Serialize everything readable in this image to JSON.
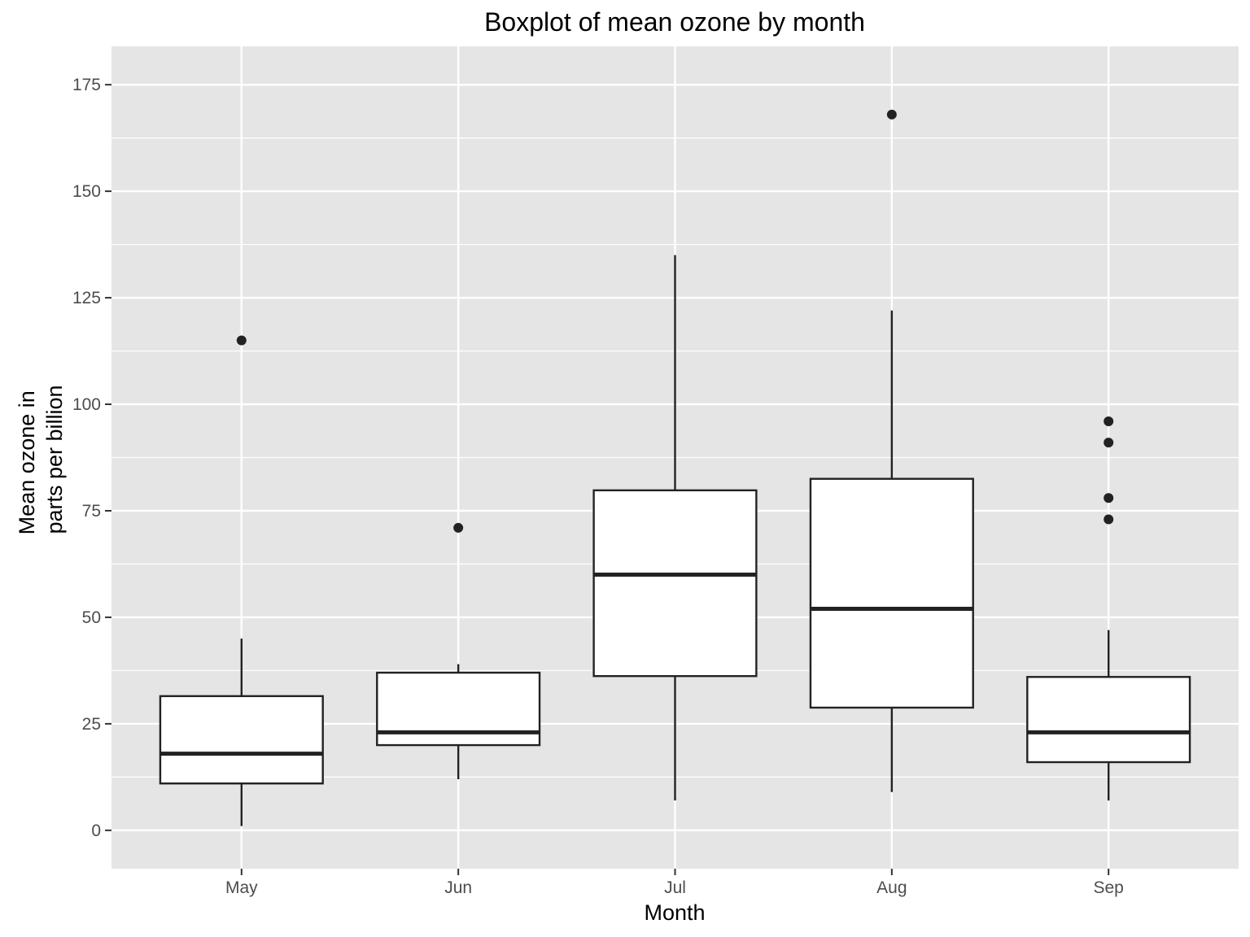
{
  "chart_data": {
    "type": "boxplot",
    "title": "Boxplot of mean ozone by month",
    "xlabel": "Month",
    "ylabel": [
      "Mean ozone in",
      "parts per billion"
    ],
    "categories": [
      "May",
      "Jun",
      "Jul",
      "Aug",
      "Sep"
    ],
    "ylim": [
      -9,
      184
    ],
    "yticks": [
      0,
      25,
      50,
      75,
      100,
      125,
      150,
      175
    ],
    "grid": true,
    "boxes": [
      {
        "category": "May",
        "lower_whisker": 1,
        "q1": 11,
        "median": 18,
        "q3": 31.5,
        "upper_whisker": 45,
        "outliers": [
          115
        ]
      },
      {
        "category": "Jun",
        "lower_whisker": 12,
        "q1": 20,
        "median": 23,
        "q3": 37,
        "upper_whisker": 39,
        "outliers": [
          71
        ]
      },
      {
        "category": "Jul",
        "lower_whisker": 7,
        "q1": 36.2,
        "median": 60,
        "q3": 79.8,
        "upper_whisker": 135,
        "outliers": []
      },
      {
        "category": "Aug",
        "lower_whisker": 9,
        "q1": 28.8,
        "median": 52,
        "q3": 82.5,
        "upper_whisker": 122,
        "outliers": [
          168
        ]
      },
      {
        "category": "Sep",
        "lower_whisker": 7,
        "q1": 16,
        "median": 23,
        "q3": 36,
        "upper_whisker": 47,
        "outliers": [
          73,
          78,
          91,
          96
        ]
      }
    ],
    "colors": {
      "panel_background": "#e5e5e5",
      "grid": "#ffffff",
      "box_fill": "#ffffff",
      "box_line": "#222222",
      "tick_text": "#4d4d4d"
    }
  }
}
